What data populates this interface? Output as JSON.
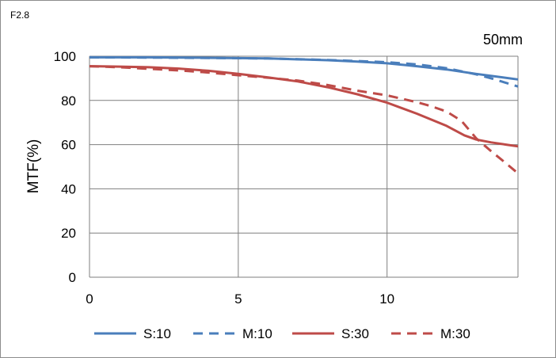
{
  "corner_label": "F2.8",
  "focal_label": "50mm",
  "colors": {
    "blue": "#4a7ebb",
    "red": "#be4b48",
    "grid": "#7f7f7f"
  },
  "chart_data": {
    "type": "line",
    "title": "",
    "xlabel": "",
    "ylabel": "MTF(%)",
    "xlim": [
      0,
      14.4
    ],
    "ylim": [
      0,
      100
    ],
    "x_ticks": [
      0,
      5,
      10
    ],
    "y_ticks": [
      0,
      20,
      40,
      60,
      80,
      100
    ],
    "grid": true,
    "legend_position": "bottom",
    "series": [
      {
        "name": "S:10",
        "color": "#4a7ebb",
        "dash": false,
        "x": [
          0,
          2,
          4,
          6,
          8,
          9,
          10,
          11,
          12,
          13,
          14.4
        ],
        "y": [
          99.5,
          99.5,
          99.3,
          99,
          98.2,
          97.6,
          96.8,
          95.5,
          94,
          92,
          89.5
        ]
      },
      {
        "name": "M:10",
        "color": "#4a7ebb",
        "dash": true,
        "x": [
          0,
          2,
          4,
          6,
          8,
          9,
          10,
          11,
          12,
          13,
          13.5,
          14.4
        ],
        "y": [
          99.5,
          99.4,
          99.2,
          99,
          98.3,
          97.8,
          97.3,
          96.3,
          94.6,
          91.8,
          90,
          86.3
        ]
      },
      {
        "name": "S:30",
        "color": "#be4b48",
        "dash": false,
        "x": [
          0,
          1,
          2,
          3,
          4,
          5,
          6,
          7,
          8,
          9,
          10,
          11,
          12,
          12.6,
          13,
          13.5,
          14,
          14.4
        ],
        "y": [
          95.5,
          95.3,
          95,
          94.4,
          93.4,
          92,
          90.4,
          88.6,
          86,
          82.8,
          79,
          74,
          68.5,
          64.2,
          62.3,
          61,
          60,
          59.2
        ]
      },
      {
        "name": "M:30",
        "color": "#be4b48",
        "dash": true,
        "x": [
          0,
          1,
          2,
          3,
          4,
          5,
          6,
          7,
          8,
          9,
          10,
          11,
          11.5,
          12,
          12.5,
          13,
          13.5,
          14,
          14.4
        ],
        "y": [
          95.5,
          95,
          94.3,
          93.6,
          92.6,
          91.4,
          90.3,
          89,
          87,
          84.4,
          82.3,
          79.2,
          77.3,
          75,
          70.8,
          62.8,
          57,
          51.5,
          47
        ]
      }
    ]
  }
}
